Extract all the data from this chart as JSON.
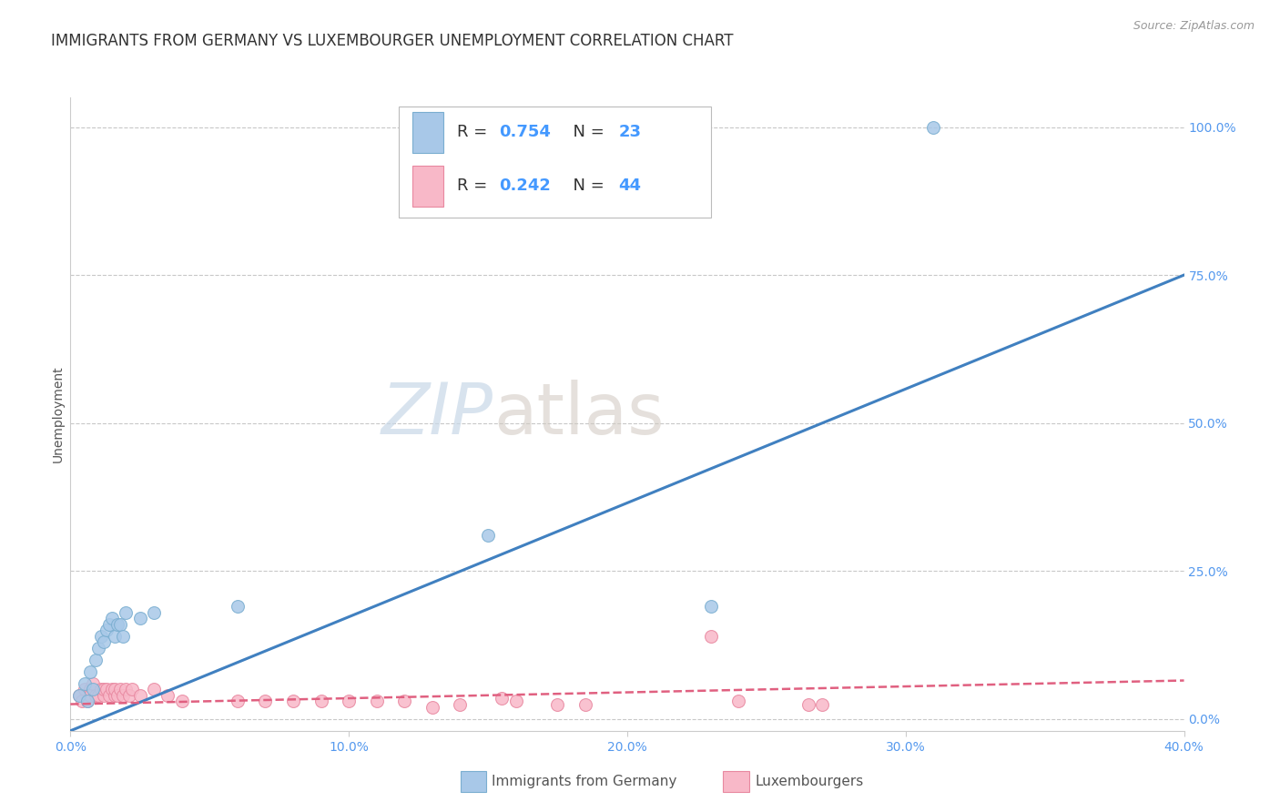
{
  "title": "IMMIGRANTS FROM GERMANY VS LUXEMBOURGER UNEMPLOYMENT CORRELATION CHART",
  "source": "Source: ZipAtlas.com",
  "ylabel": "Unemployment",
  "xlim": [
    0.0,
    0.4
  ],
  "ylim": [
    -0.02,
    1.05
  ],
  "xtick_labels": [
    "0.0%",
    "10.0%",
    "20.0%",
    "30.0%",
    "40.0%"
  ],
  "xtick_values": [
    0.0,
    0.1,
    0.2,
    0.3,
    0.4
  ],
  "ytick_labels_right": [
    "100.0%",
    "75.0%",
    "50.0%",
    "25.0%",
    "0.0%"
  ],
  "ytick_values_right": [
    1.0,
    0.75,
    0.5,
    0.25,
    0.0
  ],
  "grid_color": "#c8c8c8",
  "background_color": "#ffffff",
  "watermark_zip": "ZIP",
  "watermark_atlas": "atlas",
  "legend_r1_label": "R = ",
  "legend_r1_val": "0.754",
  "legend_n1_label": "  N = ",
  "legend_n1_val": "23",
  "legend_r2_label": "R = ",
  "legend_r2_val": "0.242",
  "legend_n2_label": "  N = ",
  "legend_n2_val": "44",
  "color_blue_fill": "#a8c8e8",
  "color_blue_edge": "#7aaed0",
  "color_blue_line": "#4080c0",
  "color_pink_fill": "#f8b8c8",
  "color_pink_edge": "#e888a0",
  "color_pink_line": "#e06080",
  "blue_scatter_x": [
    0.003,
    0.005,
    0.006,
    0.007,
    0.008,
    0.009,
    0.01,
    0.011,
    0.012,
    0.013,
    0.014,
    0.015,
    0.016,
    0.017,
    0.018,
    0.019,
    0.02,
    0.025,
    0.03,
    0.06,
    0.15,
    0.23,
    0.31
  ],
  "blue_scatter_y": [
    0.04,
    0.06,
    0.03,
    0.08,
    0.05,
    0.1,
    0.12,
    0.14,
    0.13,
    0.15,
    0.16,
    0.17,
    0.14,
    0.16,
    0.16,
    0.14,
    0.18,
    0.17,
    0.18,
    0.19,
    0.31,
    0.19,
    1.0
  ],
  "pink_scatter_x": [
    0.003,
    0.004,
    0.005,
    0.006,
    0.007,
    0.007,
    0.008,
    0.009,
    0.01,
    0.011,
    0.012,
    0.012,
    0.013,
    0.014,
    0.015,
    0.016,
    0.016,
    0.017,
    0.018,
    0.019,
    0.02,
    0.021,
    0.022,
    0.025,
    0.03,
    0.035,
    0.04,
    0.06,
    0.07,
    0.08,
    0.09,
    0.1,
    0.11,
    0.12,
    0.13,
    0.14,
    0.155,
    0.16,
    0.175,
    0.185,
    0.23,
    0.24,
    0.265,
    0.27
  ],
  "pink_scatter_y": [
    0.04,
    0.03,
    0.05,
    0.03,
    0.05,
    0.04,
    0.06,
    0.04,
    0.04,
    0.05,
    0.04,
    0.05,
    0.05,
    0.04,
    0.05,
    0.04,
    0.05,
    0.04,
    0.05,
    0.04,
    0.05,
    0.04,
    0.05,
    0.04,
    0.05,
    0.04,
    0.03,
    0.03,
    0.03,
    0.03,
    0.03,
    0.03,
    0.03,
    0.03,
    0.02,
    0.025,
    0.035,
    0.03,
    0.025,
    0.025,
    0.14,
    0.03,
    0.025,
    0.025
  ],
  "blue_line_x": [
    0.0,
    0.4
  ],
  "blue_line_y": [
    -0.02,
    0.75
  ],
  "pink_line_x": [
    0.0,
    0.4
  ],
  "pink_line_y": [
    0.025,
    0.065
  ],
  "legend_label_blue": "Immigrants from Germany",
  "legend_label_pink": "Luxembourgers",
  "tick_color": "#5599ee",
  "title_fontsize": 12,
  "axis_label_fontsize": 10,
  "tick_fontsize": 10,
  "legend_fontsize": 13
}
